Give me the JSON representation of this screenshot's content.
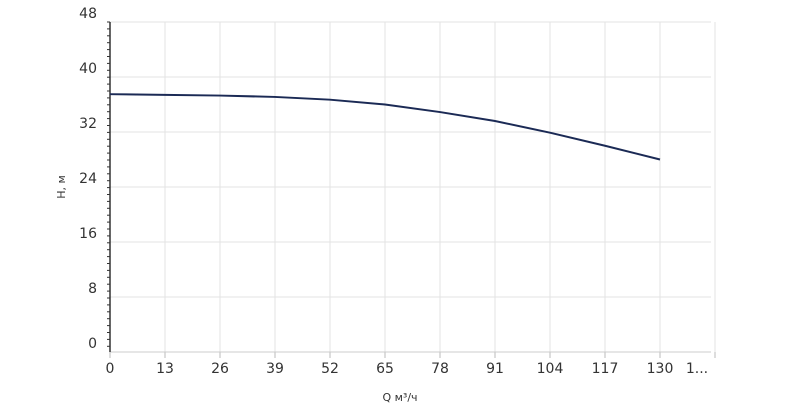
{
  "chart_data": {
    "type": "line",
    "x_label": "Q м³/ч",
    "y_label": "H, м",
    "x": [
      0,
      13,
      26,
      39,
      52,
      65,
      78,
      91,
      104,
      117,
      130
    ],
    "series": [
      {
        "name": "H",
        "color": "#1b2a55",
        "values": [
          37.5,
          37.4,
          37.3,
          37.1,
          36.7,
          36.0,
          34.9,
          33.6,
          31.9,
          30.0,
          28.0
        ]
      }
    ],
    "xlim": [
      0,
      143
    ],
    "xticks": [
      0,
      13,
      26,
      39,
      52,
      65,
      78,
      91,
      104,
      117,
      130,
      {
        "value": 143,
        "label": "1..."
      }
    ],
    "ylim": [
      0,
      48
    ],
    "yticks": [
      0,
      8,
      16,
      24,
      32,
      40,
      48
    ],
    "grid": true
  }
}
